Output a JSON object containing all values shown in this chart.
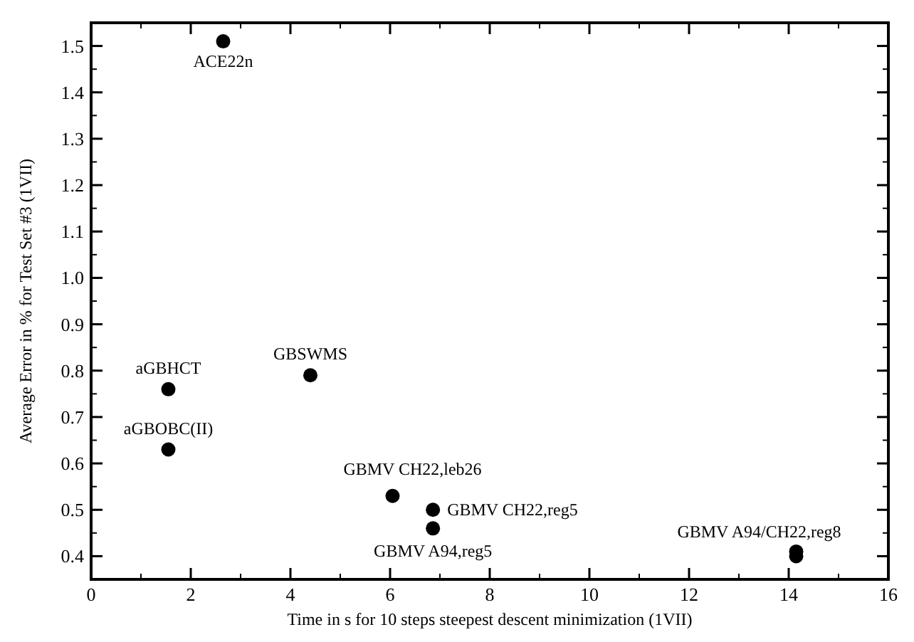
{
  "chart_data": {
    "type": "scatter",
    "xlabel": "Time in s for 10 steps steepest descent minimization (1VII)",
    "ylabel": "Average Error in % for Test Set #3 (1VII)",
    "x": [
      2.65,
      1.55,
      1.55,
      4.4,
      6.05,
      6.86,
      6.86,
      14.15,
      14.15
    ],
    "values": [
      1.51,
      0.76,
      0.63,
      0.79,
      0.53,
      0.5,
      0.46,
      0.41,
      0.4
    ],
    "color": "#000000",
    "marker": "circle",
    "xlim": [
      0,
      16
    ],
    "xticks": [
      0,
      2,
      4,
      6,
      8,
      10,
      12,
      14,
      16
    ],
    "ylim": [
      0.35,
      1.55
    ],
    "yticks": [
      0.4,
      0.5,
      0.6,
      0.7,
      0.8,
      0.9,
      {
        "value": 1.0,
        "label": "1.0"
      },
      1.1,
      1.2,
      1.3,
      1.4,
      1.5
    ],
    "grid": false,
    "annotations": [
      {
        "text": "ACE22n",
        "x": 2.65,
        "y": 1.51
      },
      {
        "text": "aGBHCT",
        "x": 1.55,
        "y": 0.76
      },
      {
        "text": "aGBOBC(II)",
        "x": 1.55,
        "y": 0.63
      },
      {
        "text": "GBSWMS",
        "x": 4.4,
        "y": 0.79
      },
      {
        "text": "GBMV CH22,leb26",
        "x": 6.05,
        "y": 0.53
      },
      {
        "text": "GBMV CH22,reg5",
        "x": 6.86,
        "y": 0.5
      },
      {
        "text": "GBMV A94,reg5",
        "x": 6.86,
        "y": 0.46
      },
      {
        "text": "GBMV A94/CH22,reg8",
        "x": 14.15,
        "y": 0.41
      }
    ]
  }
}
